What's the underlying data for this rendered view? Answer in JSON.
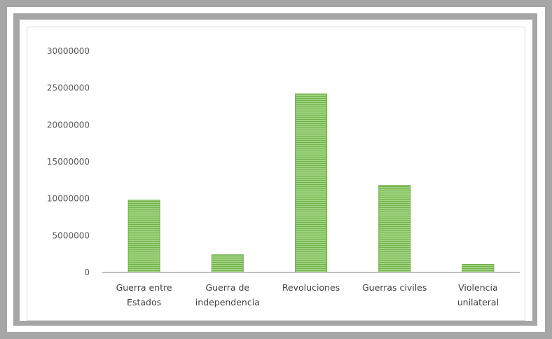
{
  "chart_data": {
    "type": "bar",
    "categories": [
      [
        "Guerra entre",
        "Estados"
      ],
      [
        "Guerra de",
        "independencia"
      ],
      [
        "Revoluciones"
      ],
      [
        "Guerras civiles"
      ],
      [
        "Violencia",
        "unilateral"
      ]
    ],
    "values": [
      9800000,
      2400000,
      24200000,
      11800000,
      1100000
    ],
    "ylim": [
      0,
      30000000
    ],
    "yticks": [
      "30000000",
      "25000000",
      "20000000",
      "15000000",
      "10000000",
      "5000000",
      "0"
    ],
    "title": "",
    "xlabel": "",
    "ylabel": "",
    "grid": false,
    "legend": "none",
    "bar_fill": "#8dc96b",
    "bar_stripe": "#c9e6b6",
    "bar_edge": "#70ad47"
  }
}
